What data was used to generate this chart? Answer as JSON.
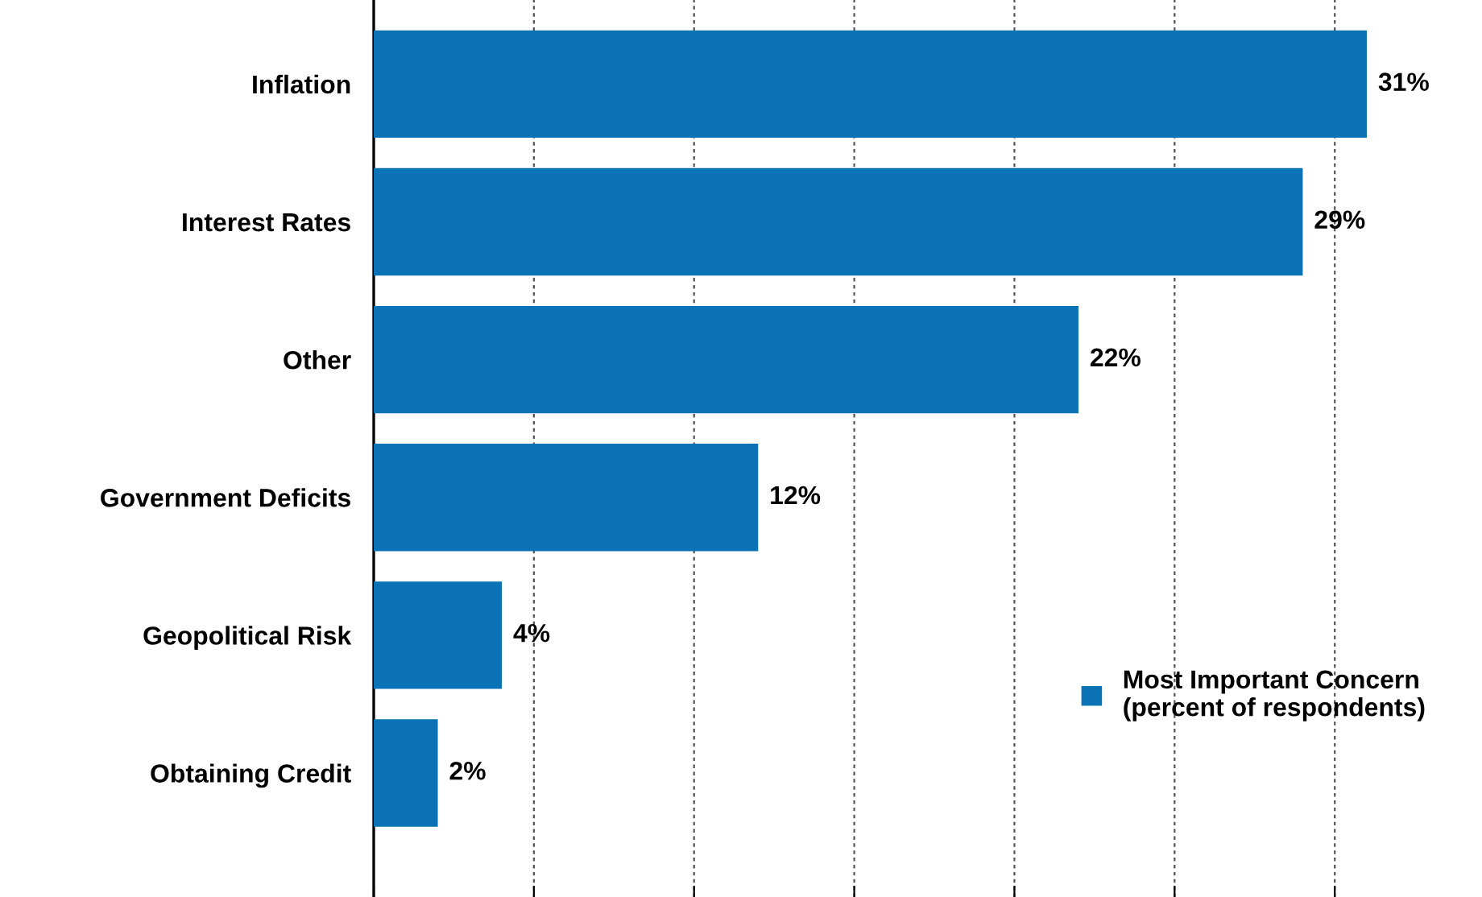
{
  "chart_data": {
    "type": "bar",
    "orientation": "horizontal",
    "categories": [
      "Inflation",
      "Interest Rates",
      "Other",
      "Government Deficits",
      "Geopolitical Risk",
      "Obtaining Credit"
    ],
    "series": [
      {
        "name": "Most Important Concern\n(percent of respondents)",
        "color": "#0b72b5",
        "values": [
          31,
          29,
          22,
          12,
          4,
          2
        ],
        "value_labels": [
          "31%",
          "29%",
          "22%",
          "12%",
          "4%",
          "2%"
        ]
      }
    ],
    "tick_labels": "y",
    "grid": "x",
    "legend": "lower right"
  }
}
